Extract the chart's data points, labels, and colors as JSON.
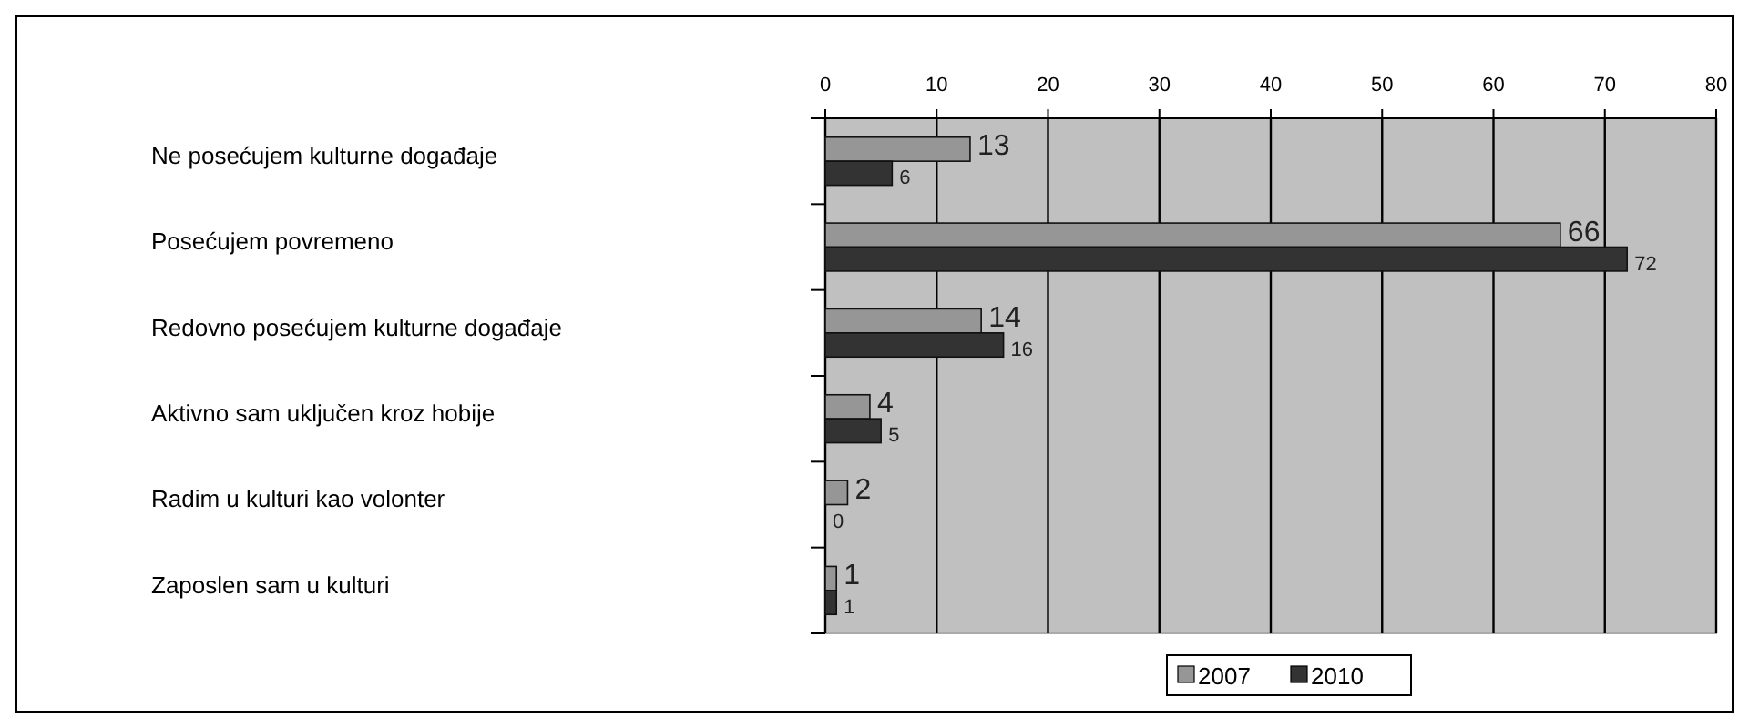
{
  "chart_data": {
    "type": "bar",
    "orientation": "horizontal",
    "categories": [
      "Ne posećujem kulturne događaje",
      "Posećujem povremeno",
      "Redovno posećujem kulturne događaje",
      "Aktivno sam uključen kroz hobije",
      "Radim u kulturi kao volonter",
      "Zaposlen sam u kulturi"
    ],
    "series": [
      {
        "name": "2007",
        "color": "#969696",
        "axis": "x2",
        "values": [
          13,
          66,
          14,
          4,
          2,
          1
        ]
      },
      {
        "name": "2010",
        "color": "#333333",
        "axis": "x2",
        "values": [
          6,
          72,
          16,
          5,
          0,
          1
        ]
      }
    ],
    "x2lim": [
      0,
      80
    ],
    "x2ticks": [
      0,
      10,
      20,
      30,
      40,
      50,
      60,
      70,
      80
    ],
    "grid": "x",
    "legend": "bottom",
    "data_labels": true
  }
}
